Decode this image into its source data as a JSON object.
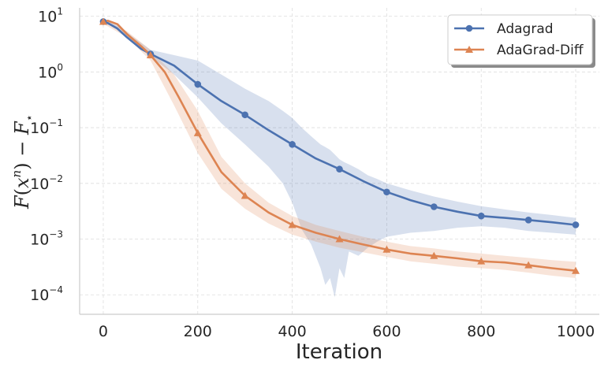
{
  "chart_data": {
    "type": "line",
    "title": "",
    "xlabel": "Iteration",
    "ylabel": "F(x^n) − F⋆",
    "ylabel_parts": {
      "f": "F",
      "open": "(",
      "x": "x",
      "n": "n",
      "close": ")",
      "minus": " − ",
      "fstar": "F",
      "star": "⋆"
    },
    "yscale": "log",
    "xlim": [
      -50,
      1050
    ],
    "ylim_exp": [
      -4.35,
      1.15
    ],
    "x_ticks": [
      0,
      200,
      400,
      600,
      800,
      1000
    ],
    "y_ticks": [
      {
        "base": "10",
        "exp": "1",
        "value_exp": 1
      },
      {
        "base": "10",
        "exp": "0",
        "value_exp": 0
      },
      {
        "base": "10",
        "exp": "−1",
        "value_exp": -1
      },
      {
        "base": "10",
        "exp": "−2",
        "value_exp": -2
      },
      {
        "base": "10",
        "exp": "−3",
        "value_exp": -3
      },
      {
        "base": "10",
        "exp": "−4",
        "value_exp": -4
      }
    ],
    "grid": true,
    "legend_position": "top-right",
    "series": [
      {
        "name": "Adagrad",
        "color": "#4c72b0",
        "marker": "circle",
        "marker_every": 100,
        "x": [
          0,
          10,
          30,
          50,
          80,
          100,
          150,
          200,
          250,
          300,
          350,
          400,
          450,
          500,
          550,
          600,
          650,
          700,
          750,
          800,
          850,
          900,
          950,
          1000
        ],
        "values": [
          8,
          7.5,
          6,
          4.2,
          2.6,
          2.1,
          1.3,
          0.6,
          0.3,
          0.17,
          0.09,
          0.05,
          0.028,
          0.018,
          0.011,
          0.007,
          0.005,
          0.0038,
          0.0031,
          0.0026,
          0.0024,
          0.0022,
          0.002,
          0.0018
        ],
        "band_x": [
          0,
          30,
          60,
          100,
          150,
          200,
          250,
          300,
          350,
          380,
          400,
          420,
          440,
          460,
          470,
          480,
          490,
          500,
          510,
          520,
          540,
          560,
          580,
          600,
          650,
          700,
          750,
          800,
          850,
          900,
          950,
          1000
        ],
        "band_upper": [
          8.6,
          7.2,
          4.4,
          2.5,
          2.0,
          1.6,
          0.9,
          0.5,
          0.3,
          0.2,
          0.15,
          0.1,
          0.07,
          0.05,
          0.045,
          0.04,
          0.033,
          0.027,
          0.024,
          0.022,
          0.018,
          0.014,
          0.012,
          0.01,
          0.0075,
          0.0058,
          0.0047,
          0.0039,
          0.0034,
          0.003,
          0.0027,
          0.0024
        ],
        "band_lower": [
          7.4,
          6.2,
          3.5,
          1.9,
          0.9,
          0.35,
          0.12,
          0.05,
          0.02,
          0.01,
          0.0045,
          0.0015,
          0.0008,
          0.0003,
          0.00015,
          0.0002,
          9e-05,
          0.0003,
          0.0002,
          0.0006,
          0.0005,
          0.0007,
          0.0009,
          0.0011,
          0.0013,
          0.0014,
          0.0016,
          0.0017,
          0.0016,
          0.0014,
          0.0013,
          0.0012
        ]
      },
      {
        "name": "AdaGrad-Diff",
        "color": "#dd8452",
        "marker": "triangle",
        "marker_every": 100,
        "x": [
          0,
          10,
          30,
          50,
          80,
          100,
          130,
          160,
          200,
          250,
          300,
          350,
          400,
          450,
          500,
          550,
          600,
          650,
          700,
          750,
          800,
          850,
          900,
          950,
          1000
        ],
        "values": [
          8,
          8.3,
          7.2,
          4.8,
          2.9,
          2.0,
          1.0,
          0.35,
          0.08,
          0.016,
          0.006,
          0.003,
          0.0018,
          0.0013,
          0.001,
          0.0008,
          0.00065,
          0.00055,
          0.0005,
          0.00045,
          0.0004,
          0.00038,
          0.00034,
          0.0003,
          0.00027
        ],
        "band_x": [
          0,
          50,
          100,
          150,
          200,
          250,
          300,
          350,
          400,
          450,
          500,
          550,
          600,
          650,
          700,
          750,
          800,
          850,
          900,
          950,
          1000
        ],
        "band_upper": [
          8.8,
          5.4,
          2.5,
          0.9,
          0.2,
          0.03,
          0.01,
          0.0045,
          0.0026,
          0.0018,
          0.0014,
          0.0011,
          0.0009,
          0.00075,
          0.00068,
          0.0006,
          0.00055,
          0.0005,
          0.00046,
          0.00042,
          0.00039
        ],
        "band_lower": [
          7.3,
          4.2,
          1.6,
          0.25,
          0.035,
          0.008,
          0.0035,
          0.0019,
          0.0012,
          0.0009,
          0.0007,
          0.00058,
          0.00048,
          0.0004,
          0.00036,
          0.00032,
          0.0003,
          0.00028,
          0.00025,
          0.00022,
          0.0002
        ]
      }
    ]
  }
}
